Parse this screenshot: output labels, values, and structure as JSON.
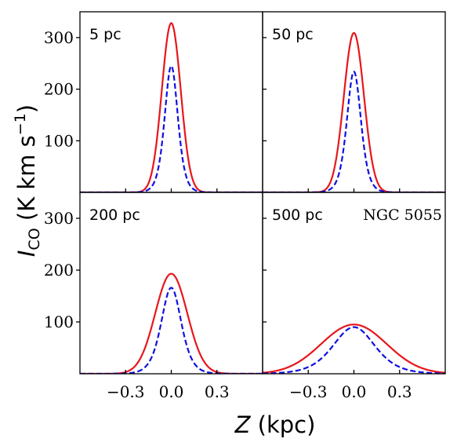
{
  "chart_data": {
    "type": "line",
    "grid": false,
    "xlabel": "Z (kpc)",
    "ylabel": "I_CO (K km s^-1)",
    "xlim": [
      -0.6,
      0.6
    ],
    "ylim": [
      0,
      350
    ],
    "xticks": [
      -0.3,
      0.0,
      0.3
    ],
    "xtick_labels": [
      "−0.3",
      "0.0",
      "0.3"
    ],
    "yticks": [
      100,
      200,
      300
    ],
    "ytick_labels": [
      "100",
      "200",
      "300"
    ],
    "panels": [
      {
        "label": "5 pc",
        "note": "",
        "series": [
          {
            "style": "solid",
            "color": "#e8161b",
            "peak": 328,
            "sigma": 0.062,
            "shape": "gauss"
          },
          {
            "style": "dashed",
            "color": "#1010e0",
            "peak": 245,
            "sigma": 0.058,
            "shape": "sech2"
          }
        ]
      },
      {
        "label": "50 pc",
        "note": "",
        "series": [
          {
            "style": "solid",
            "color": "#e8161b",
            "peak": 309,
            "sigma": 0.066,
            "shape": "gauss"
          },
          {
            "style": "dashed",
            "color": "#1010e0",
            "peak": 234,
            "sigma": 0.062,
            "shape": "sech2"
          }
        ]
      },
      {
        "label": "200 pc",
        "note": "",
        "series": [
          {
            "style": "solid",
            "color": "#e8161b",
            "peak": 193,
            "sigma": 0.105,
            "shape": "gauss"
          },
          {
            "style": "dashed",
            "color": "#1010e0",
            "peak": 166,
            "sigma": 0.088,
            "shape": "sech2"
          }
        ]
      },
      {
        "label": "500 pc",
        "note": "NGC 5055",
        "series": [
          {
            "style": "solid",
            "color": "#e8161b",
            "peak": 95,
            "sigma": 0.215,
            "shape": "gauss"
          },
          {
            "style": "dashed",
            "color": "#1010e0",
            "peak": 90,
            "sigma": 0.185,
            "shape": "sech2"
          }
        ]
      }
    ]
  }
}
